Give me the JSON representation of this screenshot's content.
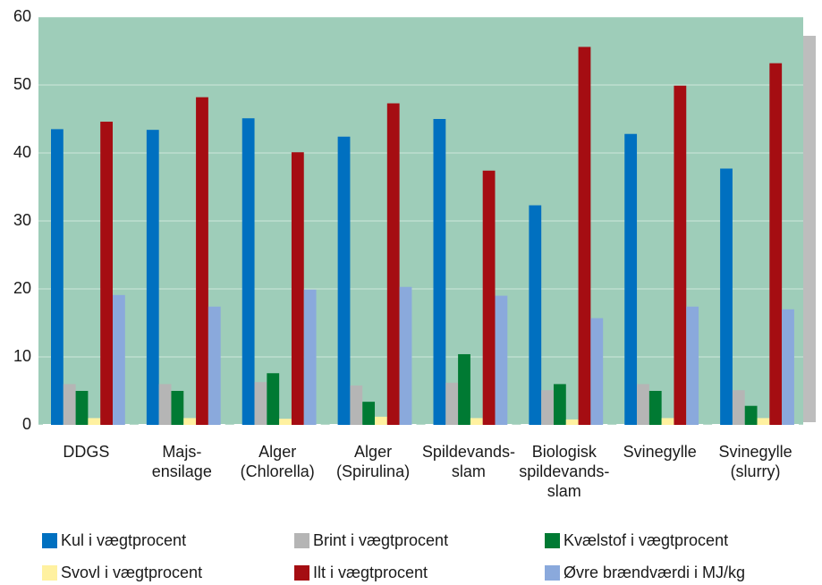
{
  "chart_data": {
    "type": "bar",
    "categories": [
      "DDGS",
      "Majs-\nensilage",
      "Alger\n(Chlorella)",
      "Alger\n(Spirulina)",
      "Spildevands-\nslam",
      "Biologisk\nspildevands-\nslam",
      "Svinegylle",
      "Svinegylle\n(slurry)"
    ],
    "series": [
      {
        "name": "Kul i vægtprocent",
        "color": "#0070c0",
        "values": [
          43.5,
          43.4,
          45.1,
          42.4,
          45.0,
          32.3,
          42.8,
          37.7
        ]
      },
      {
        "name": "Brint i vægtprocent",
        "color": "#b5b5b5",
        "values": [
          6.0,
          6.0,
          6.3,
          5.8,
          6.2,
          5.1,
          6.0,
          5.1
        ]
      },
      {
        "name": "Kvælstof i vægtprocent",
        "color": "#007a33",
        "values": [
          5.0,
          5.0,
          7.6,
          3.4,
          10.4,
          6.0,
          5.0,
          2.8
        ]
      },
      {
        "name": "Svovl i vægtprocent",
        "color": "#fff1a0",
        "values": [
          1.0,
          1.0,
          0.9,
          1.2,
          1.0,
          0.8,
          1.0,
          1.0
        ]
      },
      {
        "name": "Ilt i vægtprocent",
        "color": "#a50d12",
        "values": [
          44.6,
          48.2,
          40.1,
          47.3,
          37.4,
          55.6,
          49.9,
          53.2
        ]
      },
      {
        "name": "Øvre brændværdi i MJ/kg",
        "color": "#8aa9dc",
        "values": [
          19.1,
          17.4,
          19.9,
          20.3,
          19.0,
          15.7,
          17.4,
          17.0
        ]
      }
    ],
    "ylim": [
      0,
      60
    ],
    "yticks": [
      0,
      10,
      20,
      30,
      40,
      50,
      60
    ],
    "grid": true,
    "legend": "bottom"
  }
}
